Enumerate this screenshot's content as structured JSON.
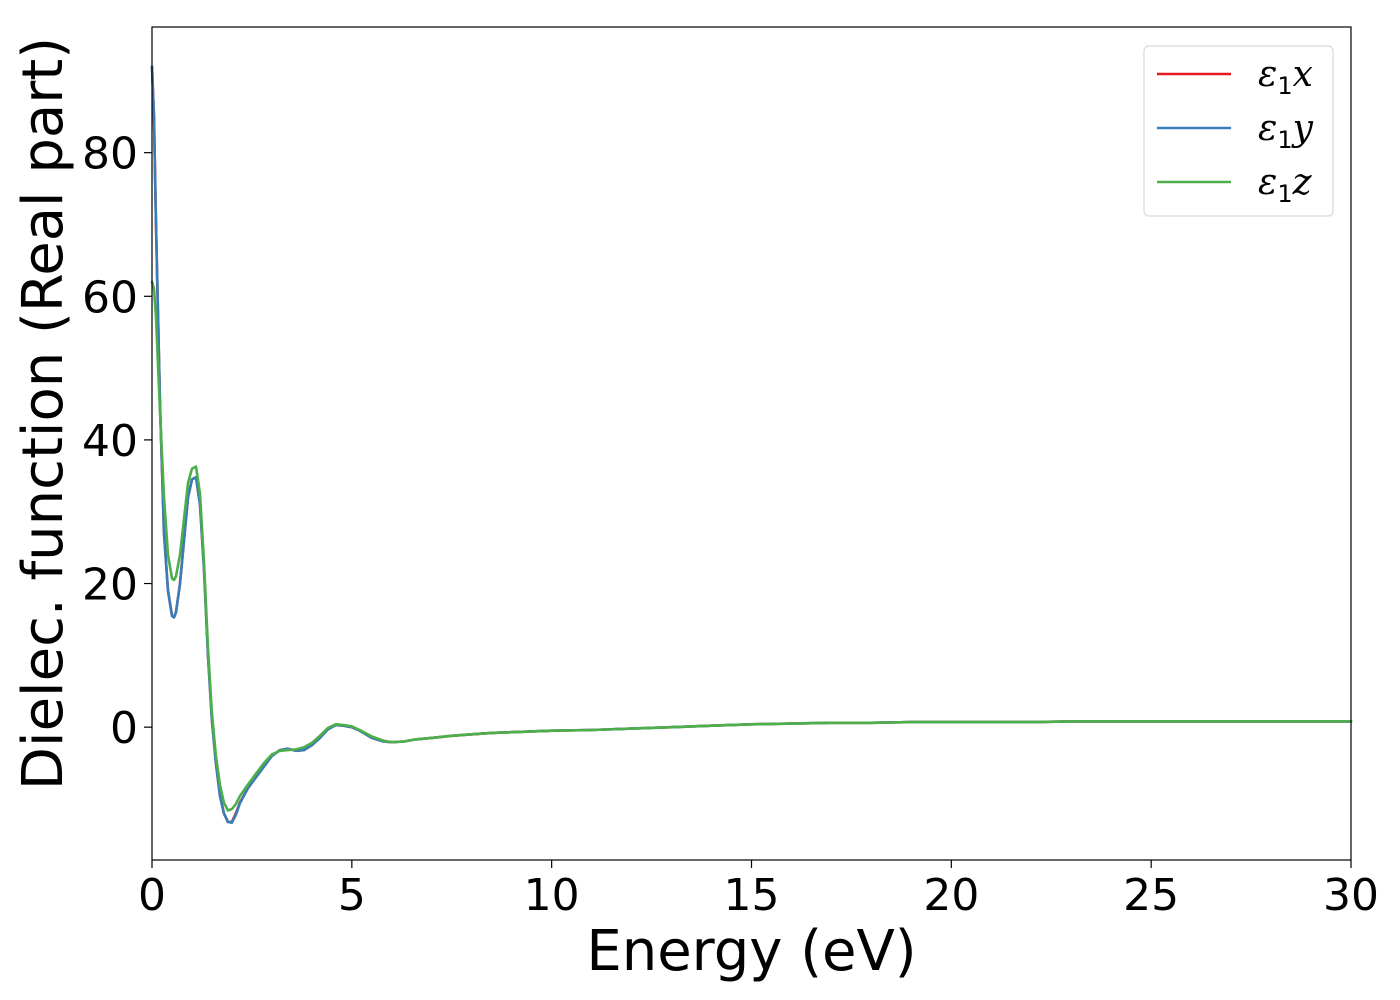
{
  "chart_data": {
    "type": "line",
    "title": "",
    "xlabel": "Energy (eV)",
    "ylabel": "Dielec. function (Real part)",
    "xlim": [
      0,
      30
    ],
    "ylim": [
      -18.5,
      97.5
    ],
    "xticks": [
      "0",
      "5",
      "10",
      "15",
      "20",
      "25",
      "30"
    ],
    "yticks": [
      "0",
      "20",
      "40",
      "60",
      "80"
    ],
    "xtick_values": [
      0,
      5,
      10,
      15,
      20,
      25,
      30
    ],
    "ytick_values": [
      0,
      20,
      40,
      60,
      80
    ],
    "grid": false,
    "legend_position": "top-right",
    "series": [
      {
        "name": "ε₁x",
        "label_base": "ε",
        "label_sub": "1",
        "label_var": "x",
        "color": "#e41a1c",
        "x": [
          0,
          0.05,
          0.1,
          0.2,
          0.3,
          0.4,
          0.5,
          0.55,
          0.6,
          0.7,
          0.8,
          0.9,
          1.0,
          1.1,
          1.2,
          1.3,
          1.4,
          1.5,
          1.6,
          1.7,
          1.8,
          1.9,
          2.0,
          2.1,
          2.2,
          2.4,
          2.6,
          2.8,
          3.0,
          3.2,
          3.4,
          3.6,
          3.8,
          4.0,
          4.2,
          4.4,
          4.6,
          4.8,
          5.0,
          5.2,
          5.5,
          5.8,
          6.0,
          6.3,
          6.6,
          7.0,
          7.5,
          8.0,
          8.5,
          9.0,
          10,
          11,
          12,
          13,
          14,
          15,
          16,
          17,
          18,
          19,
          20,
          21,
          22,
          23,
          24,
          25,
          26,
          27,
          28,
          29,
          30
        ],
        "y": [
          92,
          85,
          70,
          45,
          27,
          19,
          15.5,
          15.3,
          16,
          20,
          26,
          32,
          34.5,
          34.8,
          31,
          22,
          10,
          1,
          -5,
          -9.5,
          -12,
          -13.2,
          -13.2,
          -12,
          -10.5,
          -8.5,
          -7,
          -5.5,
          -4,
          -3.2,
          -3,
          -3.3,
          -3.2,
          -2.5,
          -1.5,
          -0.3,
          0.3,
          0.2,
          0,
          -0.5,
          -1.5,
          -2,
          -2.1,
          -2,
          -1.7,
          -1.5,
          -1.2,
          -1,
          -0.8,
          -0.7,
          -0.5,
          -0.4,
          -0.2,
          0,
          0.2,
          0.4,
          0.5,
          0.6,
          0.6,
          0.7,
          0.7,
          0.7,
          0.7,
          0.8,
          0.8,
          0.8,
          0.8,
          0.8,
          0.8,
          0.8,
          0.8
        ]
      },
      {
        "name": "ε₁y",
        "label_base": "ε",
        "label_sub": "1",
        "label_var": "y",
        "color": "#377eb8",
        "x": [
          0,
          0.05,
          0.1,
          0.2,
          0.3,
          0.4,
          0.5,
          0.55,
          0.6,
          0.7,
          0.8,
          0.9,
          1.0,
          1.1,
          1.2,
          1.3,
          1.4,
          1.5,
          1.6,
          1.7,
          1.8,
          1.9,
          2.0,
          2.1,
          2.2,
          2.4,
          2.6,
          2.8,
          3.0,
          3.2,
          3.4,
          3.6,
          3.8,
          4.0,
          4.2,
          4.4,
          4.6,
          4.8,
          5.0,
          5.2,
          5.5,
          5.8,
          6.0,
          6.3,
          6.6,
          7.0,
          7.5,
          8.0,
          8.5,
          9.0,
          10,
          11,
          12,
          13,
          14,
          15,
          16,
          17,
          18,
          19,
          20,
          21,
          22,
          23,
          24,
          25,
          26,
          27,
          28,
          29,
          30
        ],
        "y": [
          92,
          85,
          70,
          45,
          27,
          19,
          15.5,
          15.3,
          16,
          20,
          26,
          32,
          34.5,
          34.8,
          31,
          22,
          10,
          1,
          -5,
          -9.5,
          -12,
          -13.2,
          -13.3,
          -12.2,
          -10.6,
          -8.5,
          -7,
          -5.5,
          -4,
          -3.2,
          -3,
          -3.3,
          -3.2,
          -2.5,
          -1.5,
          -0.3,
          0.3,
          0.2,
          0,
          -0.5,
          -1.5,
          -2,
          -2.1,
          -2,
          -1.7,
          -1.5,
          -1.2,
          -1,
          -0.8,
          -0.7,
          -0.5,
          -0.4,
          -0.2,
          0,
          0.2,
          0.4,
          0.5,
          0.6,
          0.6,
          0.7,
          0.7,
          0.7,
          0.7,
          0.8,
          0.8,
          0.8,
          0.8,
          0.8,
          0.8,
          0.8,
          0.8
        ]
      },
      {
        "name": "ε₁z",
        "label_base": "ε",
        "label_sub": "1",
        "label_var": "z",
        "color": "#4daf4a",
        "x": [
          0,
          0.05,
          0.1,
          0.2,
          0.3,
          0.4,
          0.5,
          0.55,
          0.6,
          0.7,
          0.8,
          0.9,
          1.0,
          1.1,
          1.2,
          1.3,
          1.4,
          1.5,
          1.6,
          1.7,
          1.8,
          1.9,
          2.0,
          2.1,
          2.2,
          2.4,
          2.6,
          2.8,
          3.0,
          3.2,
          3.4,
          3.6,
          3.8,
          4.0,
          4.2,
          4.4,
          4.6,
          4.8,
          5.0,
          5.2,
          5.5,
          5.8,
          6.0,
          6.3,
          6.6,
          7.0,
          7.5,
          8.0,
          8.5,
          9.0,
          10,
          11,
          12,
          13,
          14,
          15,
          16,
          17,
          18,
          19,
          20,
          21,
          22,
          23,
          24,
          25,
          26,
          27,
          28,
          29,
          30
        ],
        "y": [
          62,
          61,
          57,
          44,
          32,
          24,
          20.7,
          20.5,
          21,
          24,
          29,
          34,
          36,
          36.3,
          32.5,
          23,
          11,
          2,
          -4,
          -8,
          -10.5,
          -11.6,
          -11.4,
          -10.7,
          -9.6,
          -8,
          -6.5,
          -5,
          -3.8,
          -3.3,
          -3.2,
          -3.1,
          -2.8,
          -2.2,
          -1.2,
          -0.1,
          0.4,
          0.3,
          0.1,
          -0.4,
          -1.3,
          -1.9,
          -2.1,
          -2,
          -1.7,
          -1.5,
          -1.2,
          -1,
          -0.8,
          -0.7,
          -0.5,
          -0.4,
          -0.2,
          0,
          0.2,
          0.4,
          0.5,
          0.6,
          0.6,
          0.7,
          0.7,
          0.7,
          0.7,
          0.8,
          0.8,
          0.8,
          0.8,
          0.8,
          0.8,
          0.8,
          0.8
        ]
      }
    ]
  }
}
